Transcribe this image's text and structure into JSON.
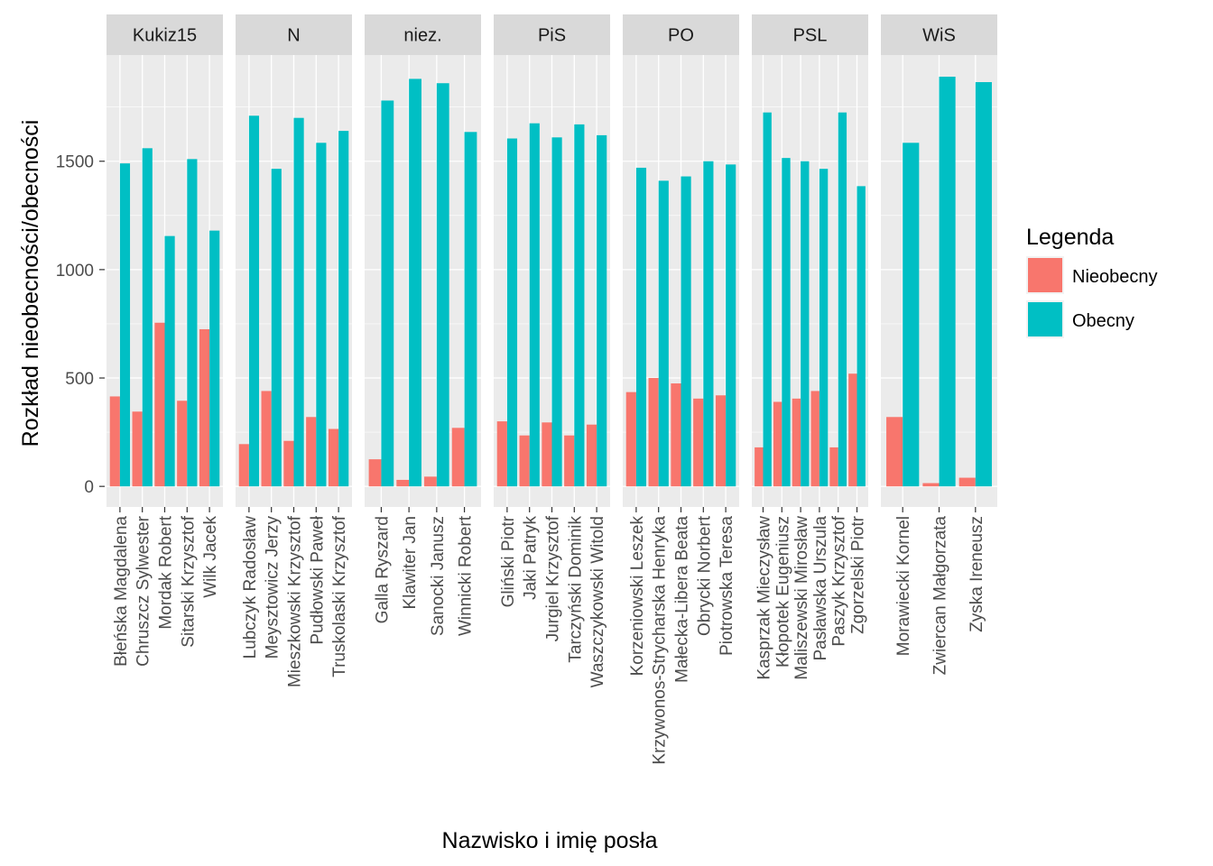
{
  "chart_data": {
    "type": "bar",
    "facets": [
      {
        "name": "Kukiz15",
        "categories": [
          "Błeńska Magdalena",
          "Chruszcz Sylwester",
          "Mordak Robert",
          "Sitarski Krzysztof",
          "Wilk Jacek"
        ],
        "Nieobecny": [
          415,
          345,
          755,
          395,
          725
        ],
        "Obecny": [
          1490,
          1560,
          1155,
          1510,
          1180
        ]
      },
      {
        "name": "N",
        "categories": [
          "Lubczyk Radosław",
          "Meysztowicz Jerzy",
          "Mieszkowski Krzysztof",
          "Pudłowski Paweł",
          "Truskolaski Krzysztof"
        ],
        "Nieobecny": [
          195,
          440,
          210,
          320,
          265
        ],
        "Obecny": [
          1710,
          1465,
          1700,
          1585,
          1640
        ]
      },
      {
        "name": "niez.",
        "categories": [
          "Galla Ryszard",
          "Klawiter Jan",
          "Sanocki Janusz",
          "Winnicki Robert"
        ],
        "Nieobecny": [
          125,
          30,
          45,
          270
        ],
        "Obecny": [
          1780,
          1880,
          1860,
          1635
        ]
      },
      {
        "name": "PiS",
        "categories": [
          "Gliński Piotr",
          "Jaki Patryk",
          "Jurgiel Krzysztof",
          "Tarczyński Dominik",
          "Waszczykowski Witold"
        ],
        "Nieobecny": [
          300,
          235,
          295,
          235,
          285
        ],
        "Obecny": [
          1605,
          1675,
          1610,
          1670,
          1620
        ]
      },
      {
        "name": "PO",
        "categories": [
          "Korzeniowski Leszek",
          "Krzywonos-Strycharska Henryka",
          "Małecka-Libera Beata",
          "Obrycki Norbert",
          "Piotrowska Teresa"
        ],
        "Nieobecny": [
          435,
          500,
          475,
          405,
          420
        ],
        "Obecny": [
          1470,
          1410,
          1430,
          1500,
          1485
        ]
      },
      {
        "name": "PSL",
        "categories": [
          "Kasprzak Mieczysław",
          "Kłopotek Eugeniusz",
          "Maliszewski Mirosław",
          "Pasławska Urszula",
          "Paszyk Krzysztof",
          "Zgorzelski Piotr"
        ],
        "Nieobecny": [
          180,
          390,
          405,
          440,
          180,
          520
        ],
        "Obecny": [
          1725,
          1515,
          1500,
          1465,
          1725,
          1385
        ]
      },
      {
        "name": "WiS",
        "categories": [
          "Morawiecki Kornel",
          "Zwiercan Małgorzata",
          "Zyska Ireneusz"
        ],
        "Nieobecny": [
          320,
          15,
          40
        ],
        "Obecny": [
          1585,
          1890,
          1865
        ]
      }
    ],
    "series_names": [
      "Nieobecny",
      "Obecny"
    ],
    "colors": {
      "Nieobecny": "#F8766D",
      "Obecny": "#00BFC4"
    },
    "xlabel": "Nazwisko i imię posła",
    "ylabel": "Rozkład nieobecności/obecności",
    "ylim": [
      -95,
      1990
    ],
    "yticks": [
      0,
      500,
      1000,
      1500
    ],
    "legend": {
      "title": "Legenda",
      "position": "right"
    },
    "grid": true
  }
}
